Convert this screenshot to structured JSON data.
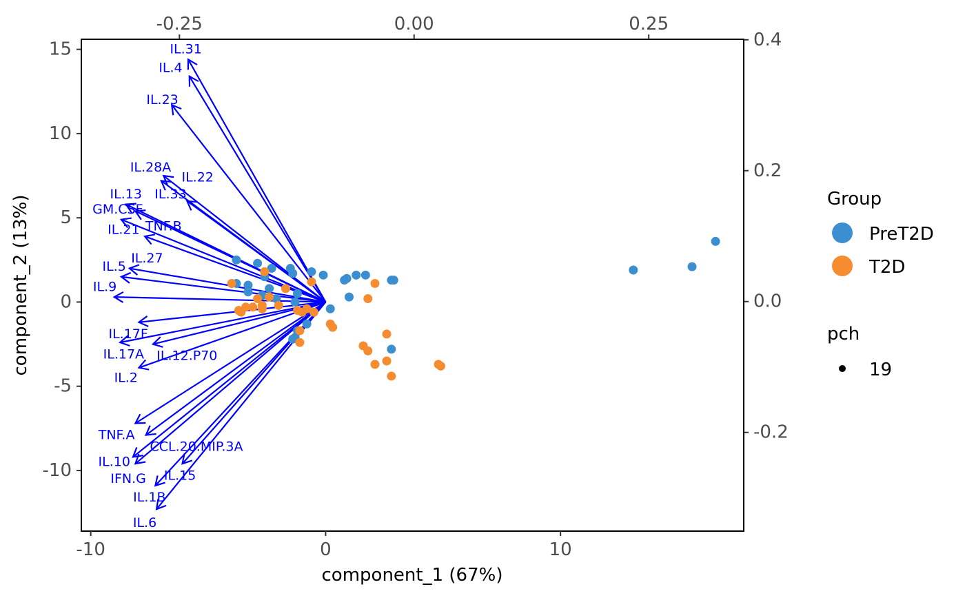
{
  "chart_data": {
    "type": "scatter",
    "subtype": "biplot",
    "title": "",
    "xlabel": "component_1   (67%)",
    "ylabel": "component_2   (13%)",
    "xlim": [
      -10.4,
      17.8
    ],
    "ylim": [
      -13.6,
      15.6
    ],
    "x_ticks": [
      -10,
      0,
      10
    ],
    "y_ticks": [
      15,
      10,
      5,
      0,
      -5,
      -10
    ],
    "x_tick_labels": [
      "-10",
      "0",
      "10"
    ],
    "y_tick_labels": [
      "15",
      "10",
      "5",
      "0",
      "-5",
      "-10"
    ],
    "secondary_axes": {
      "top_lim": [
        -0.3545,
        0.3512
      ],
      "right_lim": [
        -0.3508,
        0.4008
      ],
      "top_ticks": [
        -0.25,
        0.0,
        0.25
      ],
      "top_tick_labels": [
        "-0.25",
        "0.00",
        "0.25"
      ],
      "right_ticks": [
        0.4,
        0.2,
        0.0,
        -0.2
      ],
      "right_tick_labels": [
        "0.4",
        "0.2",
        "0.0",
        "-0.2"
      ]
    },
    "grid": false,
    "legend_position": "right",
    "colors": {
      "PreT2D": "#3b8fd0",
      "T2D": "#f58c30",
      "arrows": "#0000ff"
    },
    "legend": {
      "group_title": "Group",
      "groups": [
        "PreT2D",
        "T2D"
      ],
      "pch_title": "pch",
      "pch_label": "19"
    },
    "series": [
      {
        "name": "PreT2D",
        "points": [
          [
            16.6,
            3.6
          ],
          [
            15.6,
            2.1
          ],
          [
            13.1,
            1.9
          ],
          [
            2.9,
            1.3
          ],
          [
            2.8,
            1.3
          ],
          [
            1.7,
            1.6
          ],
          [
            1.3,
            1.6
          ],
          [
            0.9,
            1.4
          ],
          [
            0.8,
            1.3
          ],
          [
            1.0,
            0.3
          ],
          [
            0.2,
            -0.4
          ],
          [
            2.8,
            -2.8
          ],
          [
            -0.1,
            1.6
          ],
          [
            -0.6,
            1.8
          ],
          [
            -1.4,
            1.7
          ],
          [
            -1.5,
            2.0
          ],
          [
            -2.3,
            2.0
          ],
          [
            -2.9,
            2.3
          ],
          [
            -3.8,
            2.5
          ],
          [
            -2.6,
            1.5
          ],
          [
            -3.8,
            1.1
          ],
          [
            -3.3,
            1.0
          ],
          [
            -2.4,
            0.8
          ],
          [
            -1.2,
            0.5
          ],
          [
            -3.3,
            0.6
          ],
          [
            -2.7,
            0.4
          ],
          [
            -2.1,
            0.2
          ],
          [
            -1.3,
            0.0
          ],
          [
            -0.8,
            -1.3
          ],
          [
            -1.2,
            -1.7
          ],
          [
            -1.3,
            -2.1
          ],
          [
            -1.4,
            -2.2
          ]
        ]
      },
      {
        "name": "T2D",
        "points": [
          [
            -2.6,
            1.8
          ],
          [
            -0.6,
            1.2
          ],
          [
            -1.7,
            0.8
          ],
          [
            -4.0,
            1.1
          ],
          [
            -2.4,
            0.3
          ],
          [
            -2.9,
            0.2
          ],
          [
            -3.4,
            -0.3
          ],
          [
            -3.1,
            -0.3
          ],
          [
            -2.7,
            -0.2
          ],
          [
            -2.0,
            -0.2
          ],
          [
            -3.7,
            -0.5
          ],
          [
            -3.6,
            -0.6
          ],
          [
            -2.7,
            -0.4
          ],
          [
            -1.2,
            -0.5
          ],
          [
            -1.0,
            -0.6
          ],
          [
            -0.8,
            -0.4
          ],
          [
            -0.5,
            -0.6
          ],
          [
            -1.1,
            -1.7
          ],
          [
            -1.1,
            -2.4
          ],
          [
            0.2,
            -1.3
          ],
          [
            0.3,
            -1.5
          ],
          [
            1.6,
            -2.6
          ],
          [
            1.8,
            -2.9
          ],
          [
            2.1,
            -3.7
          ],
          [
            2.6,
            -3.5
          ],
          [
            2.8,
            -4.4
          ],
          [
            2.6,
            -1.9
          ],
          [
            4.8,
            -3.7
          ],
          [
            4.9,
            -3.8
          ],
          [
            1.8,
            0.2
          ],
          [
            2.1,
            1.1
          ]
        ]
      }
    ],
    "arrows": [
      {
        "label": "IL.31",
        "x": -5.85,
        "y": 14.4
      },
      {
        "label": "IL.4",
        "x": -5.8,
        "y": 13.4
      },
      {
        "label": "IL.23",
        "x": -6.55,
        "y": 11.7
      },
      {
        "label": "IL.28A",
        "x": -6.9,
        "y": 7.5
      },
      {
        "label": "IL.22",
        "x": -5.9,
        "y": 6.0
      },
      {
        "label": "IL.33",
        "x": -7.0,
        "y": 7.2
      },
      {
        "label": "IL.13",
        "x": -8.5,
        "y": 5.8
      },
      {
        "label": "GM.CSF",
        "x": -8.1,
        "y": 5.4
      },
      {
        "label": "IL.21",
        "x": -8.7,
        "y": 4.9
      },
      {
        "label": "TNF.B",
        "x": -7.7,
        "y": 3.9
      },
      {
        "label": "IL.27",
        "x": -8.35,
        "y": 2.0
      },
      {
        "label": "IL.5",
        "x": -8.7,
        "y": 1.5
      },
      {
        "label": "IL.9",
        "x": -9.0,
        "y": 0.3
      },
      {
        "label": "IL.17F",
        "x": -7.95,
        "y": -1.2
      },
      {
        "label": "IL.17A",
        "x": -8.75,
        "y": -2.4
      },
      {
        "label": "IL.12.P70",
        "x": -7.35,
        "y": -2.5
      },
      {
        "label": "IL.2",
        "x": -7.95,
        "y": -3.9
      },
      {
        "label": "TNF.A",
        "x": -8.1,
        "y": -7.2
      },
      {
        "label": "CCL.20.MIP.3A",
        "x": -7.65,
        "y": -7.9
      },
      {
        "label": "IL.10",
        "x": -8.2,
        "y": -9.2
      },
      {
        "label": "IFN.G",
        "x": -8.1,
        "y": -9.6
      },
      {
        "label": "IL.15",
        "x": -6.1,
        "y": -9.6
      },
      {
        "label": "IL.1B",
        "x": -7.25,
        "y": -10.9
      },
      {
        "label": "IL.6",
        "x": -7.2,
        "y": -12.3
      }
    ],
    "arrow_label_positions": [
      {
        "label": "IL.31",
        "x": -5.95,
        "y": 15.0
      },
      {
        "label": "IL.4",
        "x": -6.6,
        "y": 13.9
      },
      {
        "label": "IL.23",
        "x": -6.95,
        "y": 12.0
      },
      {
        "label": "IL.28A",
        "x": -7.45,
        "y": 8.0
      },
      {
        "label": "IL.22",
        "x": -5.45,
        "y": 7.4
      },
      {
        "label": "IL.33",
        "x": -6.6,
        "y": 6.4
      },
      {
        "label": "IL.13",
        "x": -8.5,
        "y": 6.4
      },
      {
        "label": "GM.CSF",
        "x": -8.85,
        "y": 5.5
      },
      {
        "label": "IL.21",
        "x": -8.6,
        "y": 4.3
      },
      {
        "label": "TNF.B",
        "x": -6.9,
        "y": 4.5
      },
      {
        "label": "IL.27",
        "x": -7.6,
        "y": 2.6
      },
      {
        "label": "IL.5",
        "x": -9.0,
        "y": 2.1
      },
      {
        "label": "IL.9",
        "x": -9.4,
        "y": 0.9
      },
      {
        "label": "IL.17F",
        "x": -8.4,
        "y": -1.9
      },
      {
        "label": "IL.17A",
        "x": -8.6,
        "y": -3.1
      },
      {
        "label": "IL.12.P70",
        "x": -5.9,
        "y": -3.2
      },
      {
        "label": "IL.2",
        "x": -8.5,
        "y": -4.5
      },
      {
        "label": "TNF.A",
        "x": -8.9,
        "y": -7.9
      },
      {
        "label": "CCL.20.MIP.3A",
        "x": -5.5,
        "y": -8.6
      },
      {
        "label": "IL.10",
        "x": -9.0,
        "y": -9.5
      },
      {
        "label": "IFN.G",
        "x": -8.4,
        "y": -10.5
      },
      {
        "label": "IL.15",
        "x": -6.2,
        "y": -10.3
      },
      {
        "label": "IL.1B",
        "x": -7.5,
        "y": -11.6
      },
      {
        "label": "IL.6",
        "x": -7.7,
        "y": -13.1
      }
    ]
  }
}
